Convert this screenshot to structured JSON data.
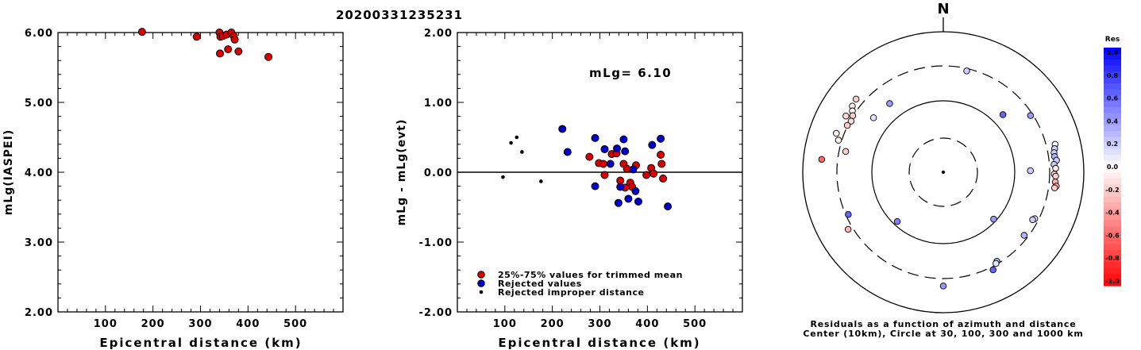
{
  "title": "20200331235231",
  "chart_data": [
    {
      "type": "scatter",
      "ylabel": "mLg(IASPEI)",
      "xlabel": "Epicentral distance (km)",
      "xlim": [
        0,
        600
      ],
      "ylim": [
        2.0,
        6.0
      ],
      "xticks": [
        "100",
        "200",
        "300",
        "400",
        "500"
      ],
      "yticks": [
        "2.00",
        "3.00",
        "4.00",
        "5.00",
        "6.00"
      ],
      "series": [
        {
          "name": "25%-75% values for trimmed mean",
          "color": "#dd0000",
          "points": [
            [
              177,
              6.01
            ],
            [
              292,
              5.94
            ],
            [
              340,
              6.0
            ],
            [
              342,
              5.94
            ],
            [
              347,
              5.95
            ],
            [
              355,
              5.97
            ],
            [
              365,
              6.0
            ],
            [
              370,
              5.95
            ],
            [
              341,
              5.7
            ],
            [
              358,
              5.76
            ],
            [
              372,
              5.9
            ],
            [
              380,
              5.73
            ],
            [
              443,
              5.65
            ]
          ]
        }
      ]
    },
    {
      "type": "scatter",
      "ylabel": "mLg - mLg(evt)",
      "xlabel": "Epicentral distance (km)",
      "annotation": "mLg= 6.10",
      "xlim": [
        0,
        600
      ],
      "ylim": [
        -2.0,
        2.0
      ],
      "xticks": [
        "100",
        "200",
        "300",
        "400",
        "500"
      ],
      "yticks": [
        "-2.00",
        "-1.00",
        "0.00",
        "1.00",
        "2.00"
      ],
      "legend": [
        "25%-75% values for trimmed mean",
        "Rejected values",
        "Rejected improper distance"
      ],
      "series": [
        {
          "name": "25%-75% values for trimmed mean",
          "color": "#dd0000",
          "points": [
            [
              278,
              0.22
            ],
            [
              298,
              0.13
            ],
            [
              307,
              0.12
            ],
            [
              310,
              -0.04
            ],
            [
              325,
              0.26
            ],
            [
              335,
              0.27
            ],
            [
              343,
              -0.12
            ],
            [
              350,
              0.12
            ],
            [
              353,
              -0.22
            ],
            [
              357,
              0.05
            ],
            [
              364,
              -0.15
            ],
            [
              368,
              -0.21
            ],
            [
              376,
              0.1
            ],
            [
              398,
              -0.04
            ],
            [
              408,
              0.06
            ],
            [
              413,
              -0.02
            ],
            [
              428,
              0.25
            ],
            [
              430,
              0.12
            ],
            [
              433,
              -0.09
            ]
          ]
        },
        {
          "name": "Rejected values",
          "color": "#0000cc",
          "points": [
            [
              221,
              0.62
            ],
            [
              232,
              0.29
            ],
            [
              290,
              0.49
            ],
            [
              290,
              -0.2
            ],
            [
              310,
              0.33
            ],
            [
              322,
              0.12
            ],
            [
              336,
              0.34
            ],
            [
              339,
              -0.44
            ],
            [
              343,
              -0.21
            ],
            [
              350,
              0.47
            ],
            [
              353,
              0.3
            ],
            [
              360,
              -0.38
            ],
            [
              370,
              0.04
            ],
            [
              375,
              -0.27
            ],
            [
              381,
              -0.42
            ],
            [
              410,
              0.39
            ],
            [
              428,
              0.48
            ],
            [
              443,
              -0.49
            ]
          ]
        },
        {
          "name": "Rejected improper distance",
          "color": "#000000",
          "points": [
            [
              96,
              -0.07
            ],
            [
              113,
              0.42
            ],
            [
              125,
              0.5
            ],
            [
              136,
              0.29
            ],
            [
              176,
              -0.13
            ]
          ]
        }
      ]
    },
    {
      "type": "scatter",
      "subtype": "polar",
      "north_label": "N",
      "caption": [
        "Residuals as a function of azimuth and distance",
        "Center (10km), Circle at 30, 100, 300 and 1000 km"
      ],
      "rings_km": [
        10,
        30,
        100,
        300,
        1000
      ],
      "colorbar": {
        "title": "Res",
        "ticks": [
          "1.0",
          "0.8",
          "0.6",
          "0.4",
          "0.2",
          "0.0",
          "-0.2",
          "-0.4",
          "-0.6",
          "-0.8",
          "-1.0"
        ],
        "range": [
          -1.0,
          1.0
        ],
        "positive_color": "#0000ff",
        "negative_color": "#ff0000"
      },
      "points": [
        {
          "az": 306,
          "r": 0.8,
          "res": -0.1
        },
        {
          "az": 304,
          "r": 0.78,
          "res": -0.05
        },
        {
          "az": 310,
          "r": 0.81,
          "res": -0.2
        },
        {
          "az": 300,
          "r": 0.8,
          "res": -0.15
        },
        {
          "az": 302,
          "r": 0.76,
          "res": -0.2
        },
        {
          "az": 299,
          "r": 0.75,
          "res": -0.15
        },
        {
          "az": 296,
          "r": 0.76,
          "res": -0.2
        },
        {
          "az": 290,
          "r": 0.81,
          "res": -0.05
        },
        {
          "az": 287,
          "r": 0.78,
          "res": -0.05
        },
        {
          "az": 276,
          "r": 0.87,
          "res": -0.6
        },
        {
          "az": 282,
          "r": 0.71,
          "res": -0.2
        },
        {
          "az": 308,
          "r": 0.63,
          "res": 0.1
        },
        {
          "az": 322,
          "r": 0.62,
          "res": 0.4
        },
        {
          "az": 13,
          "r": 0.74,
          "res": 0.2
        },
        {
          "az": 46,
          "r": 0.59,
          "res": 0.6
        },
        {
          "az": 57,
          "r": 0.74,
          "res": 0.4
        },
        {
          "az": 76,
          "r": 0.82,
          "res": 0.0
        },
        {
          "az": 78,
          "r": 0.81,
          "res": 0.2
        },
        {
          "az": 80,
          "r": 0.8,
          "res": 0.2
        },
        {
          "az": 82,
          "r": 0.8,
          "res": 0.3
        },
        {
          "az": 84,
          "r": 0.81,
          "res": 0.2
        },
        {
          "az": 86,
          "r": 0.79,
          "res": 0.2
        },
        {
          "az": 88,
          "r": 0.8,
          "res": -0.1
        },
        {
          "az": 91,
          "r": 0.79,
          "res": -0.1
        },
        {
          "az": 92,
          "r": 0.8,
          "res": -0.2
        },
        {
          "az": 95,
          "r": 0.8,
          "res": -0.3
        },
        {
          "az": 97,
          "r": 0.81,
          "res": -0.3
        },
        {
          "az": 98,
          "r": 0.8,
          "res": -0.2
        },
        {
          "az": 89,
          "r": 0.62,
          "res": 0.2
        },
        {
          "az": 117,
          "r": 0.73,
          "res": 0.1
        },
        {
          "az": 118,
          "r": 0.72,
          "res": 0.2
        },
        {
          "az": 128,
          "r": 0.73,
          "res": 0.3
        },
        {
          "az": 133,
          "r": 0.49,
          "res": 0.4
        },
        {
          "az": 149,
          "r": 0.74,
          "res": 0.3
        },
        {
          "az": 150,
          "r": 0.75,
          "res": 0.1
        },
        {
          "az": 153,
          "r": 0.78,
          "res": 0.6
        },
        {
          "az": 180,
          "r": 0.81,
          "res": 0.4
        },
        {
          "az": 223,
          "r": 0.48,
          "res": 0.5
        },
        {
          "az": 239,
          "r": 0.79,
          "res": -0.3
        },
        {
          "az": 246,
          "r": 0.74,
          "res": 0.6
        }
      ]
    }
  ]
}
